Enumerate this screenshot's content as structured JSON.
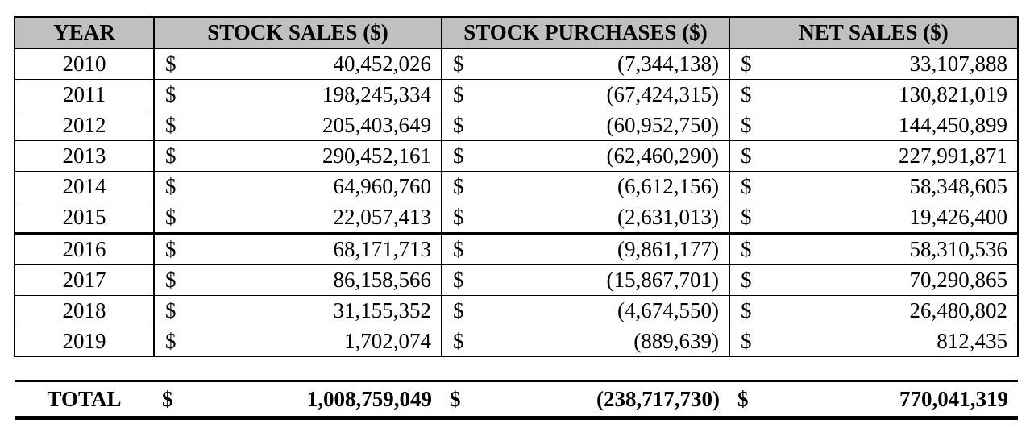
{
  "headers": {
    "year": "YEAR",
    "stock_sales": "STOCK SALES ($)",
    "stock_purchases": "STOCK PURCHASES ($)",
    "net_sales": "NET SALES ($)"
  },
  "currency_symbol": "$",
  "rows": [
    {
      "year": "2010",
      "stock_sales": "40,452,026",
      "stock_purchases": "(7,344,138)",
      "net_sales": "33,107,888"
    },
    {
      "year": "2011",
      "stock_sales": "198,245,334",
      "stock_purchases": "(67,424,315)",
      "net_sales": "130,821,019"
    },
    {
      "year": "2012",
      "stock_sales": "205,403,649",
      "stock_purchases": "(60,952,750)",
      "net_sales": "144,450,899"
    },
    {
      "year": "2013",
      "stock_sales": "290,452,161",
      "stock_purchases": "(62,460,290)",
      "net_sales": "227,991,871"
    },
    {
      "year": "2014",
      "stock_sales": "64,960,760",
      "stock_purchases": "(6,612,156)",
      "net_sales": "58,348,605"
    },
    {
      "year": "2015",
      "stock_sales": "22,057,413",
      "stock_purchases": "(2,631,013)",
      "net_sales": "19,426,400"
    },
    {
      "year": "2016",
      "stock_sales": "68,171,713",
      "stock_purchases": "(9,861,177)",
      "net_sales": "58,310,536"
    },
    {
      "year": "2017",
      "stock_sales": "86,158,566",
      "stock_purchases": "(15,867,701)",
      "net_sales": "70,290,865"
    },
    {
      "year": "2018",
      "stock_sales": "31,155,352",
      "stock_purchases": "(4,674,550)",
      "net_sales": "26,480,802"
    },
    {
      "year": "2019",
      "stock_sales": "1,702,074",
      "stock_purchases": "(889,639)",
      "net_sales": "812,435"
    }
  ],
  "total": {
    "label": "TOTAL",
    "stock_sales": "1,008,759,049",
    "stock_purchases": "(238,717,730)",
    "net_sales": "770,041,319"
  }
}
